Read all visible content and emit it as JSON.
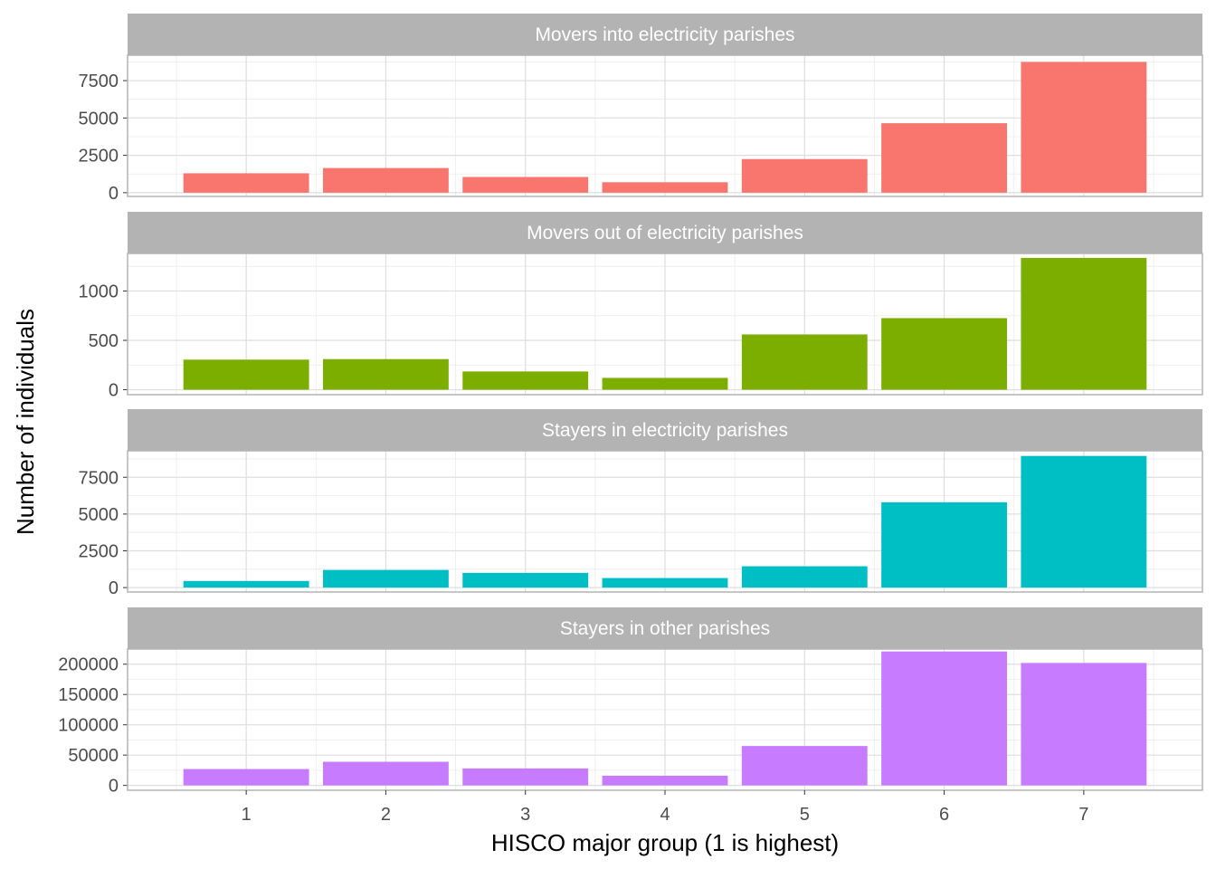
{
  "chart_data": {
    "type": "bar",
    "layout": "facet-grid-vertical",
    "xlabel": "HISCO major group (1 is highest)",
    "ylabel": "Number of individuals",
    "categories": [
      "1",
      "2",
      "3",
      "4",
      "5",
      "6",
      "7"
    ],
    "grid": true,
    "legend": "none",
    "panels": [
      {
        "title": "Movers into electricity parishes",
        "color": "#F8766D",
        "values": [
          1300,
          1650,
          1050,
          700,
          2250,
          4650,
          8750
        ],
        "yticks": [
          0,
          2500,
          5000,
          7500
        ],
        "ylim": [
          -250,
          9200
        ]
      },
      {
        "title": "Movers out of electricity parishes",
        "color": "#7CAE00",
        "values": [
          305,
          310,
          185,
          120,
          560,
          725,
          1335
        ],
        "yticks": [
          0,
          500,
          1000
        ],
        "ylim": [
          -50,
          1380
        ]
      },
      {
        "title": "Stayers in electricity parishes",
        "color": "#00BFC4",
        "values": [
          450,
          1200,
          1000,
          650,
          1450,
          5800,
          8950
        ],
        "yticks": [
          0,
          2500,
          5000,
          7500
        ],
        "ylim": [
          -300,
          9300
        ]
      },
      {
        "title": "Stayers in other parishes",
        "color": "#C77CFF",
        "values": [
          27000,
          39000,
          28000,
          16000,
          65000,
          221000,
          202000
        ],
        "yticks": [
          0,
          50000,
          100000,
          150000,
          200000
        ],
        "ylim": [
          -8000,
          225000
        ]
      }
    ]
  }
}
